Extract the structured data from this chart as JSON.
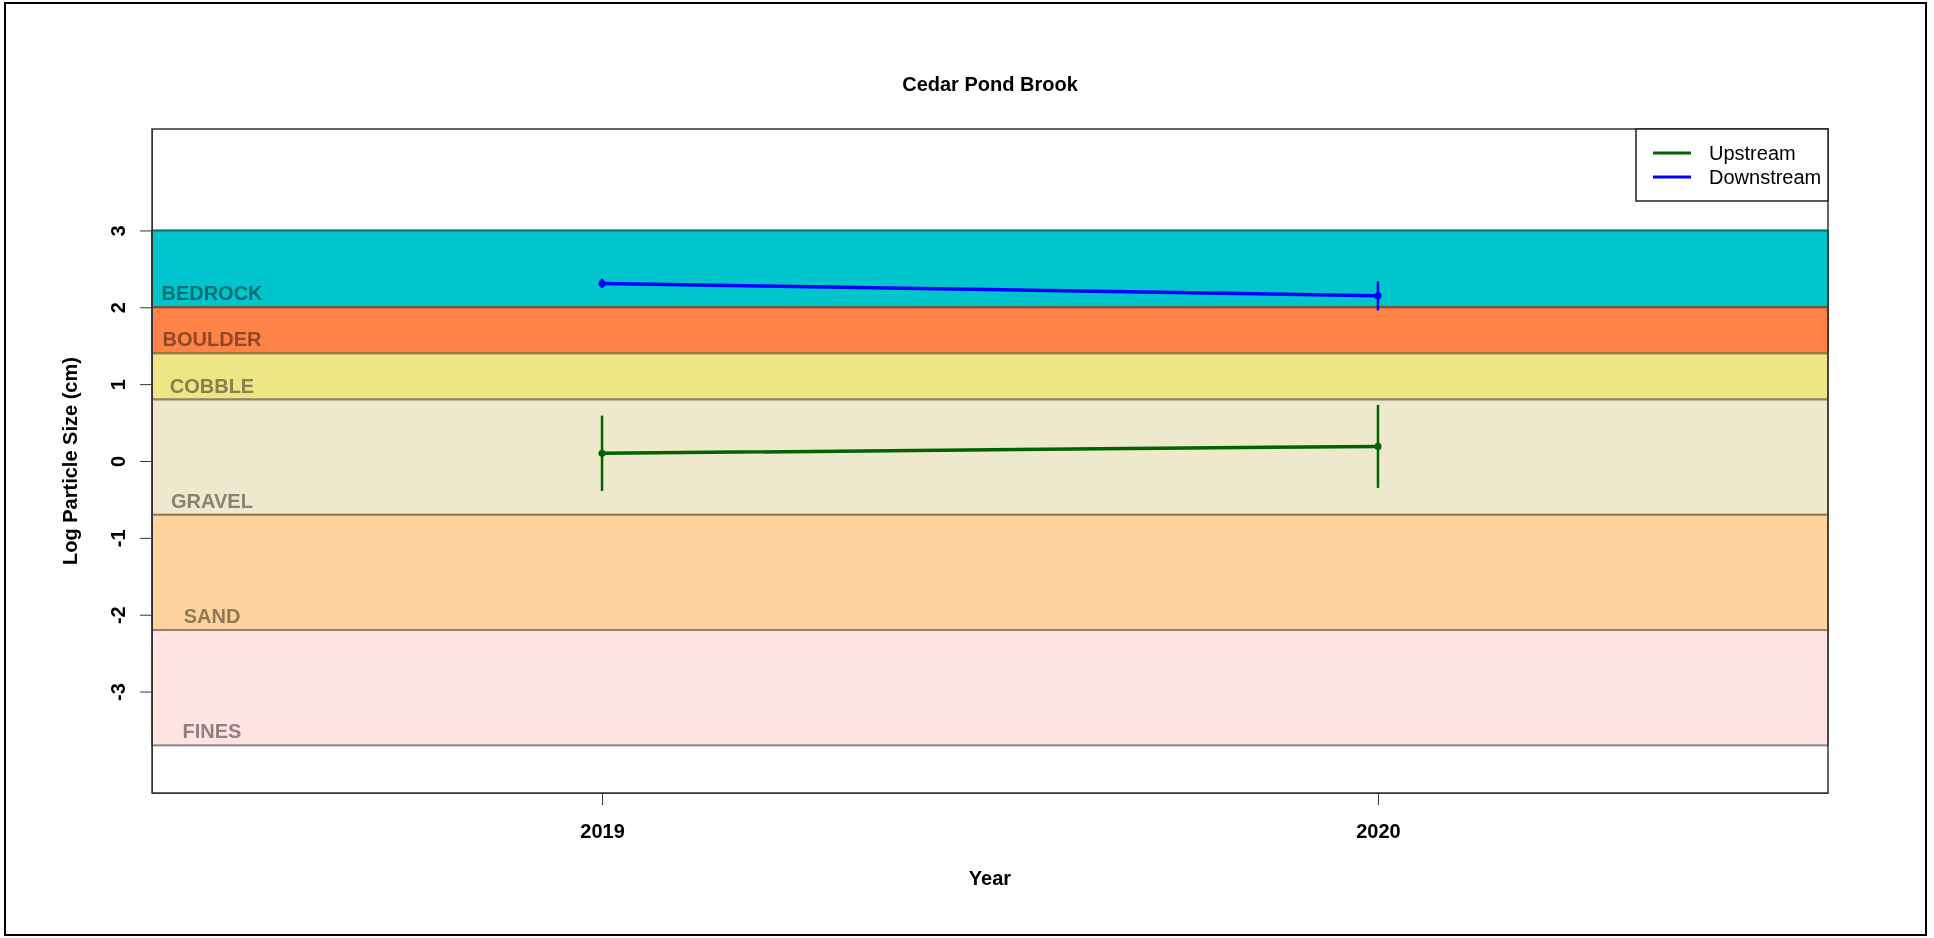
{
  "chart_data": {
    "type": "line",
    "title": "Cedar Pond Brook",
    "xlabel": "Year",
    "ylabel": "Log Particle Size (cm)",
    "x": [
      2019,
      2020
    ],
    "xlim": [
      2018.42,
      2020.58
    ],
    "xticks": [
      2019,
      2020
    ],
    "ylim": [
      -4.32,
      4.32
    ],
    "yticks": [
      -3,
      -2,
      -1,
      0,
      1,
      2,
      3
    ],
    "series": [
      {
        "name": "Upstream",
        "color": "#006400",
        "values": [
          0.1,
          0.19
        ],
        "errors": [
          0.49,
          0.54
        ]
      },
      {
        "name": "Downstream",
        "color": "#0000ff",
        "values": [
          2.31,
          2.15
        ],
        "errors": [
          0.06,
          0.19
        ]
      }
    ],
    "bands": [
      {
        "axis": "y",
        "from": 2,
        "to": 3,
        "label": "BEDROCK",
        "color": "#00c5cd"
      },
      {
        "axis": "y",
        "from": 1.4,
        "to": 2,
        "label": "BOULDER",
        "color": "#ff8247"
      },
      {
        "axis": "y",
        "from": 0.8,
        "to": 1.4,
        "label": "COBBLE",
        "color": "#eee685"
      },
      {
        "axis": "y",
        "from": -0.7,
        "to": 0.8,
        "label": "GRAVEL",
        "color": "#eee8cd"
      },
      {
        "axis": "y",
        "from": -2.2,
        "to": -0.7,
        "label": "SAND",
        "color": "#ffd39b"
      },
      {
        "axis": "y",
        "from": -3.7,
        "to": -2.2,
        "label": "FINES",
        "color": "#ffe4e1"
      }
    ],
    "legend": "top right",
    "marker": "circle"
  }
}
